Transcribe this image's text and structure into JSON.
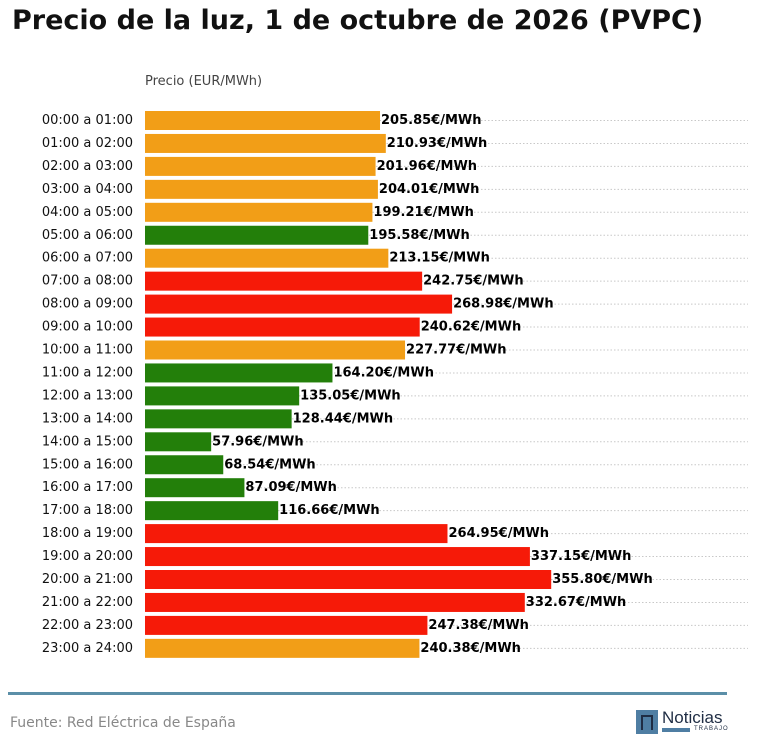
{
  "title": "Precio de la luz, 1 de octubre de 2026 (PVPC)",
  "source": "Fuente: Red Eléctrica de España",
  "logo": {
    "name": "Noticias",
    "sub": "TRABAJO"
  },
  "colors": {
    "low": "#237f0a",
    "mid": "#f29e17",
    "high": "#f61a08",
    "grid": "#c8c8c8",
    "divider": "#5b8fa8"
  },
  "chart_data": {
    "type": "bar",
    "orientation": "horizontal",
    "ylabel": "Precio (EUR/MWh)",
    "grid": true,
    "categories": [
      "00:00 a 01:00",
      "01:00 a 02:00",
      "02:00 a 03:00",
      "03:00 a 04:00",
      "04:00 a 05:00",
      "05:00 a 06:00",
      "06:00 a 07:00",
      "07:00 a 08:00",
      "08:00 a 09:00",
      "09:00 a 10:00",
      "10:00 a 11:00",
      "11:00 a 12:00",
      "12:00 a 13:00",
      "13:00 a 14:00",
      "14:00 a 15:00",
      "15:00 a 16:00",
      "16:00 a 17:00",
      "17:00 a 18:00",
      "18:00 a 19:00",
      "19:00 a 20:00",
      "20:00 a 21:00",
      "21:00 a 22:00",
      "22:00 a 23:00",
      "23:00 a 24:00"
    ],
    "values": [
      205.85,
      210.93,
      201.96,
      204.01,
      199.21,
      195.58,
      213.15,
      242.75,
      268.98,
      240.62,
      227.77,
      164.2,
      135.05,
      128.44,
      57.96,
      68.54,
      87.09,
      116.66,
      264.95,
      337.15,
      355.8,
      332.67,
      247.38,
      240.38
    ],
    "value_labels": [
      "205.85€/MWh",
      "210.93€/MWh",
      "201.96€/MWh",
      "204.01€/MWh",
      "199.21€/MWh",
      "195.58€/MWh",
      "213.15€/MWh",
      "242.75€/MWh",
      "268.98€/MWh",
      "240.62€/MWh",
      "227.77€/MWh",
      "164.20€/MWh",
      "135.05€/MWh",
      "128.44€/MWh",
      "57.96€/MWh",
      "68.54€/MWh",
      "87.09€/MWh",
      "116.66€/MWh",
      "264.95€/MWh",
      "337.15€/MWh",
      "355.80€/MWh",
      "332.67€/MWh",
      "247.38€/MWh",
      "240.38€/MWh"
    ],
    "levels": [
      "mid",
      "mid",
      "mid",
      "mid",
      "mid",
      "low",
      "mid",
      "high",
      "high",
      "high",
      "mid",
      "low",
      "low",
      "low",
      "low",
      "low",
      "low",
      "low",
      "high",
      "high",
      "high",
      "high",
      "high",
      "mid"
    ],
    "xlim": [
      0,
      480
    ]
  }
}
